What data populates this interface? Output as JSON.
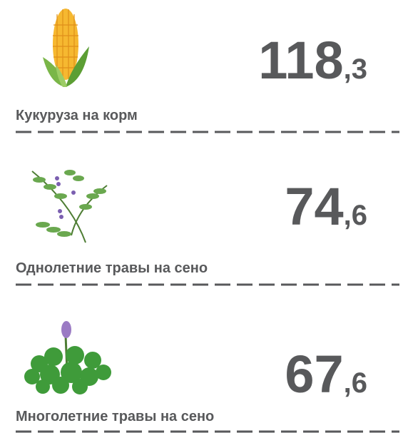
{
  "items": [
    {
      "label": "Кукуруза на корм",
      "value": {
        "whole": "118",
        "fraction": ",3"
      }
    },
    {
      "label": "Однолетние травы на сено",
      "value": {
        "whole": "74",
        "fraction": ",6"
      }
    },
    {
      "label": "Многолетние травы на сено",
      "value": {
        "whole": "67",
        "fraction": ",6"
      }
    }
  ]
}
